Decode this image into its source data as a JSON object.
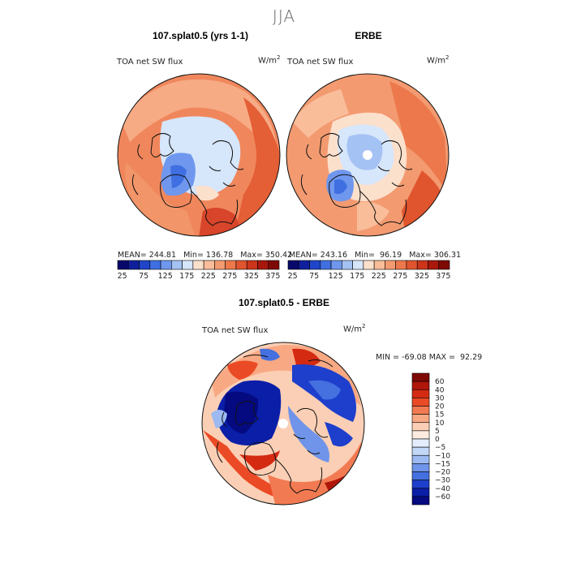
{
  "figure": {
    "season": "JJA",
    "panels": [
      {
        "title": "107.splat0.5 (yrs 1-1)",
        "variable": "TOA net SW flux",
        "units_base": "W/m",
        "units_exp": "2",
        "stats_text": "MEAN= 244.81   Min= 136.78   Max= 350.42"
      },
      {
        "title": "ERBE",
        "variable": "TOA net SW flux",
        "units_base": "W/m",
        "units_exp": "2",
        "stats_text": "MEAN= 243.16   Min=  96.19   Max= 306.31"
      }
    ],
    "diff_panel": {
      "title": "107.splat0.5 - ERBE",
      "variable": "TOA net SW flux",
      "units_base": "W/m",
      "units_exp": "2",
      "stats_text": "MIN = -69.08 MAX =  92.29"
    }
  },
  "chart_data": [
    {
      "type": "heatmap",
      "title": "107.splat0.5 (yrs 1-1)",
      "projection": "north polar stereographic",
      "variable": "TOA net SW flux",
      "units": "W/m2",
      "stats": {
        "mean": 244.81,
        "min": 136.78,
        "max": 350.42
      },
      "colorbar": {
        "ticks": [
          25,
          75,
          125,
          175,
          225,
          275,
          325,
          375
        ],
        "colors": [
          "#08086a",
          "#10209c",
          "#1f45c8",
          "#3f6fe0",
          "#6f97ee",
          "#a5c2f4",
          "#d6e6fb",
          "#fbe0cc",
          "#f9bd9a",
          "#f39a70",
          "#ec784b",
          "#e0552e",
          "#cc351a",
          "#a8180c",
          "#7e0a05"
        ]
      }
    },
    {
      "type": "heatmap",
      "title": "ERBE",
      "projection": "north polar stereographic",
      "variable": "TOA net SW flux",
      "units": "W/m2",
      "stats": {
        "mean": 243.16,
        "min": 96.19,
        "max": 306.31
      },
      "colorbar": {
        "ticks": [
          25,
          75,
          125,
          175,
          225,
          275,
          325,
          375
        ],
        "colors": [
          "#08086a",
          "#10209c",
          "#1f45c8",
          "#3f6fe0",
          "#6f97ee",
          "#a5c2f4",
          "#d6e6fb",
          "#fbe0cc",
          "#f9bd9a",
          "#f39a70",
          "#ec784b",
          "#e0552e",
          "#cc351a",
          "#a8180c",
          "#7e0a05"
        ]
      }
    },
    {
      "type": "heatmap",
      "title": "107.splat0.5 - ERBE",
      "projection": "north polar stereographic",
      "variable": "TOA net SW flux",
      "units": "W/m2",
      "stats": {
        "min": -69.08,
        "max": 92.29
      },
      "colorbar": {
        "orientation": "vertical",
        "ticks": [
          60,
          40,
          30,
          20,
          15,
          10,
          5,
          0,
          -5,
          -10,
          -15,
          -20,
          -30,
          -40,
          -60
        ],
        "colors": [
          "#7e0a05",
          "#b0160a",
          "#d42a12",
          "#ea4a25",
          "#f27a52",
          "#f8a983",
          "#fbcfb5",
          "#fcebe0",
          "#e3edfc",
          "#c3d7f7",
          "#9cbaf1",
          "#6f94e9",
          "#4470e0",
          "#1d3fcc",
          "#0a1ea8",
          "#060a80"
        ]
      }
    }
  ]
}
